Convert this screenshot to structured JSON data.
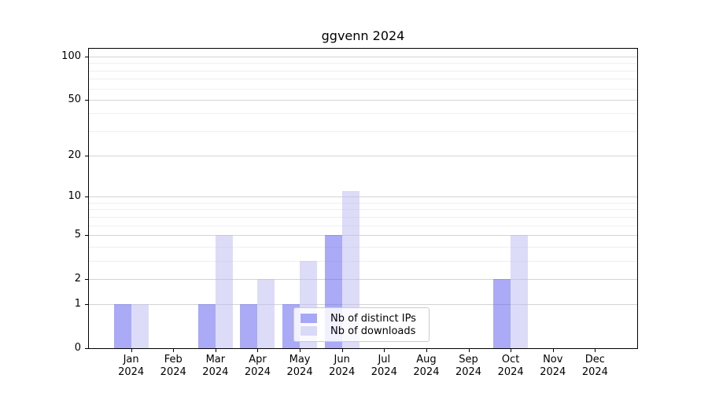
{
  "title": "ggvenn 2024",
  "chart_data": {
    "type": "bar",
    "title": "ggvenn 2024",
    "categories": [
      "Jan",
      "Feb",
      "Mar",
      "Apr",
      "May",
      "Jun",
      "Jul",
      "Aug",
      "Sep",
      "Oct",
      "Nov",
      "Dec"
    ],
    "category_year": "2024",
    "series": [
      {
        "name": "Nb of distinct IPs",
        "color": "#5555f0",
        "opacity": 0.5,
        "values": [
          1,
          0,
          1,
          1,
          1,
          5,
          0,
          0,
          0,
          2,
          0,
          0
        ]
      },
      {
        "name": "Nb of downloads",
        "color": "#b9b9f1",
        "opacity": 0.5,
        "values": [
          1,
          0,
          5,
          2,
          3,
          11,
          0,
          0,
          0,
          5,
          0,
          0
        ]
      }
    ],
    "y_scale": "log1p",
    "y_major_ticks": [
      0,
      1,
      2,
      5,
      10,
      20,
      50,
      100
    ],
    "y_minor_ticks": [
      3,
      4,
      6,
      7,
      8,
      9,
      30,
      40,
      60,
      70,
      80,
      90
    ],
    "ylim_top_value": 130,
    "grid": true,
    "legend_position": "bottom-center",
    "colors": {
      "bar_distinct_ips_rendered": "#a9a9f8",
      "bar_downloads_rendered": "#dcdcf8",
      "major_grid": "#d4d4d4",
      "minor_grid": "#efefef",
      "axis": "#000000"
    }
  }
}
